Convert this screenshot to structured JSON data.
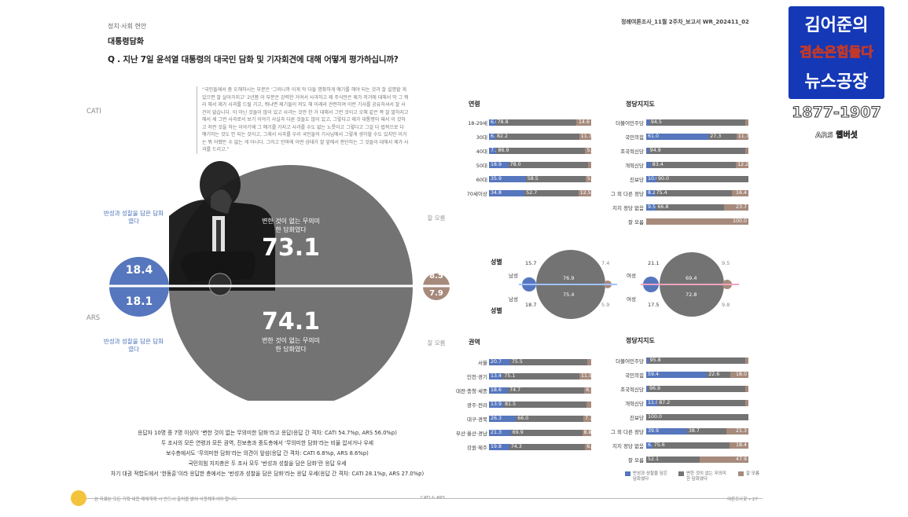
{
  "header": {
    "category": "정치·사회 현안",
    "title": "대통령담화",
    "doc_id": "정례여론조사_11월 2주차_보고서 WR_202411_02",
    "question": "Q . 지난 7일 윤석열 대통령의 대국민 담화 및 기자회견에 대해 어떻게 평가하십니까?"
  },
  "quote": "“국민들께서 좀 오해하시는 부분은 ‘그러니까 이게 막 다들 명확하게 얘기를 해야 되는 것과 잘 설명할 게 있으면 잘 살아가지고’ 2년쯤 이 부분은 강력한 거여서 사과하고 제 주식만은 제가 저거에 대해서 막 그 뭐라 해서 제가 사과를 드릴 거고, 뭐냐면 제기들이 저도 해 이래라 관련하여 이런 기사를 공유하셔서 잘 사건이 없습니다. 이 아닌 것들이 많이 있고 사과는 것만 한 거 대해서 그런 것이고 오해 같은 쪽 잘 말하지고 해서 세 그런 사과로서 보기 이야기 사실과 다른 것들도 많이 있고, 그렇다고 제가 대통령이 돼서 이 것하고 저런 것을 하는 이야기에 그 얘기를 가지고 사과를 수도 없는 노릇이고 그렇다고 그걸 다 법적으로 다 얘기하는 것도 안 되는 것이고, 그래서 사과를 우리 국민들의 기사님에서 그렇게 생각할 수도 있지만 이거는 뭐 어쨌든 수 없는 게 아니다. 그러고 안마에 어떤 상태가 잘 앞에서 판단하는 그 것들이 대해서 제가 사과를 드리고.”",
  "poll": {
    "method_top": "CATI",
    "method_bottom": "ARS",
    "remorse_caption": "반성과 성찰을 담은 담화였다",
    "meaningless_caption": "변한 것이 없는 무의미한 담화였다",
    "unknown_caption": "잘 모름",
    "cati": {
      "remorse": "18.4",
      "meaningless": "73.1",
      "unknown": "8.5"
    },
    "ars": {
      "remorse": "18.1",
      "meaningless": "74.1",
      "unknown": "7.9"
    }
  },
  "summary": [
    "응답자 10명 중 7명 이상이 ‘변한 것이 없는 무의미한 담화’라고 응답(응답 간 격차: CATI 54.7%p, ARS 56.0%p)",
    "두 조사의 모든 연령과 모든 권역, 진보층과 중도층에서 ‘무의미한 담화’라는 비율 압서거나 우세",
    "보수층에서도 ‘무의미한 담화’라는 의견이 앞섬(응답 간 격차: CATI 6.8%p, ARS 8.6%p)",
    "국민의힘 지지층은 두 조사 모두 ‘반성과 성찰을 담은 담화’란 응답 우세",
    "차기 대권 적합도에서 ‘한동훈’이라 응답한 층에서는 ‘반성과 성찰을 담은 담화’라는 응답 우세(응답 간 격차: CATI 28.1%p, ARS 27.0%p)"
  ],
  "footer": {
    "left_note": "본 자료는 모든 기획 내용 매체게재 시 반드시 출처를 밝혀 사용해주셔야 합니다.",
    "center": "CATI & ARS",
    "right": "여론조사꽃 • 27"
  },
  "section_titles": {
    "age": "연령",
    "party_top": "정당지지도",
    "gender_top": "성별",
    "gender_bottom": "성별",
    "region": "권역",
    "party_bottom": "정당지지도",
    "male": "남성",
    "female": "여성"
  },
  "gender": {
    "cati_male": {
      "remorse": "15.7",
      "meaningless": "76.9",
      "unknown": "7.4"
    },
    "ars_male": {
      "remorse": "18.7",
      "meaningless": "75.4",
      "unknown": "5.9"
    },
    "cati_female": {
      "remorse": "21.1",
      "meaningless": "69.4",
      "unknown": "9.5"
    },
    "ars_female": {
      "remorse": "17.5",
      "meaningless": "72.8",
      "unknown": "9.8"
    }
  },
  "legend": {
    "remorse": "반성과 성찰을 담은 담화였다",
    "meaningless": "변한 것이 없는 무의미한 담화였다",
    "unknown": "잘 모름"
  },
  "brand": {
    "line1": "김어준의",
    "line2": "겸손은힘들다",
    "line3": "뉴스공장",
    "phone": "1877-1907",
    "sub": "ARS 웹버섯"
  },
  "colors": {
    "remorse": "#5676bd",
    "meaningless": "#737373",
    "unknown": "#a68a7c",
    "brand_blue": "#1438b6",
    "brand_yellow": "#ffd21a"
  },
  "chart_data": [
    {
      "type": "bar",
      "title": "연령",
      "stacked": true,
      "categories": [
        "18-29세",
        "30대",
        "40대",
        "50대",
        "60대",
        "70세이상"
      ],
      "series": [
        {
          "name": "반성과 성찰을 담은 담화였다",
          "values": [
            6.6,
            6.2,
            7.3,
            18.9,
            35.9,
            34.8
          ],
          "labels": [
            "6.6",
            "6.2",
            "7.3",
            "18.9",
            "35.9",
            "34.8"
          ]
        },
        {
          "name": "변한 것이 없는 무의미한 담화였다",
          "values": [
            78.8,
            82.2,
            86.9,
            78.0,
            58.5,
            52.7
          ],
          "labels": [
            "78.8",
            "82.2",
            "86.9",
            "78.0",
            "58.5",
            "52.7"
          ]
        },
        {
          "name": "잘 모름",
          "values": [
            14.6,
            11.7,
            5.8,
            3.1,
            5.5,
            12.5
          ],
          "labels": [
            "14.6",
            "11.7",
            "5.8",
            "",
            "5.5",
            "12.5"
          ]
        }
      ]
    },
    {
      "type": "bar",
      "title": "정당지지도",
      "stacked": true,
      "categories": [
        "더불어민주당",
        "국민의힘",
        "조국혁신당",
        "개혁신당",
        "진보당",
        "그 외 다른 정당",
        "지지 정당 없음",
        "잘 모름"
      ],
      "series": [
        {
          "name": "반성과 성찰을 담은 담화였다",
          "values": [
            3.0,
            61.0,
            2.0,
            4.4,
            10.0,
            8.2,
            9.5,
            0.0
          ],
          "labels": [
            "",
            "61.0",
            "",
            "",
            "10.0",
            "8.2",
            "9.5",
            ""
          ]
        },
        {
          "name": "변한 것이 없는 무의미한 담화였다",
          "values": [
            94.5,
            27.3,
            94.9,
            83.4,
            90.0,
            75.4,
            66.8,
            0.0
          ],
          "labels": [
            "94.5",
            "27.3",
            "94.9",
            "83.4",
            "90.0",
            "75.4",
            "66.8",
            ""
          ]
        },
        {
          "name": "잘 모름",
          "values": [
            2.5,
            11.7,
            3.1,
            12.2,
            0.0,
            16.4,
            23.7,
            100.0
          ],
          "labels": [
            "",
            "11.7",
            "",
            "12.2",
            "",
            "16.4",
            "23.7",
            "100.0"
          ]
        }
      ]
    },
    {
      "type": "bar",
      "title": "권역",
      "stacked": true,
      "categories": [
        "서울",
        "인천·경기",
        "대전·충청·세종",
        "광주·전라",
        "대구·경북",
        "부산·울산·경남",
        "강원·제주"
      ],
      "series": [
        {
          "name": "반성과 성찰을 담은 담화였다",
          "values": [
            20.7,
            13.4,
            18.6,
            13.9,
            26.3,
            21.3,
            19.8
          ],
          "labels": [
            "20.7",
            "13.4",
            "18.6",
            "13.9",
            "26.3",
            "21.3",
            "19.8"
          ]
        },
        {
          "name": "변한 것이 없는 무의미한 담화였다",
          "values": [
            75.5,
            75.1,
            74.7,
            81.5,
            66.0,
            69.9,
            74.3
          ],
          "labels": [
            "75.5",
            "75.1",
            "74.7",
            "81.5",
            "66.0",
            "69.9",
            "74.3"
          ]
        },
        {
          "name": "잘 모름",
          "values": [
            3.8,
            11.5,
            6.7,
            4.6,
            7.7,
            8.8,
            6.0
          ],
          "labels": [
            "",
            "11.5",
            "6.7",
            "",
            "7.7",
            "8.8",
            "6.0"
          ]
        }
      ]
    },
    {
      "type": "bar",
      "title": "정당지지도",
      "stacked": true,
      "categories": [
        "더불어민주당",
        "국민의힘",
        "조국혁신당",
        "개혁신당",
        "진보당",
        "그 외 다른 정당",
        "지지 정당 없음",
        "잘 모름"
      ],
      "series": [
        {
          "name": "반성과 성찰을 담은 담화였다",
          "values": [
            2.0,
            59.4,
            1.5,
            11.0,
            0.0,
            39.9,
            6.0,
            0.0
          ],
          "labels": [
            "",
            "59.4",
            "",
            "11.0",
            "",
            "39.9",
            "6.0",
            ""
          ]
        },
        {
          "name": "변한 것이 없는 무의미한 담화였다",
          "values": [
            95.8,
            22.6,
            96.9,
            87.2,
            100.0,
            38.7,
            75.6,
            52.1
          ],
          "labels": [
            "95.8",
            "22.6",
            "96.9",
            "87.2",
            "100.0",
            "38.7",
            "75.6",
            "52.1"
          ]
        },
        {
          "name": "잘 모름",
          "values": [
            2.2,
            18.0,
            1.6,
            1.8,
            0.0,
            21.3,
            18.4,
            47.9
          ],
          "labels": [
            "",
            "18.0",
            "",
            "",
            "",
            "21.3",
            "18.4",
            "47.9"
          ]
        }
      ]
    }
  ]
}
